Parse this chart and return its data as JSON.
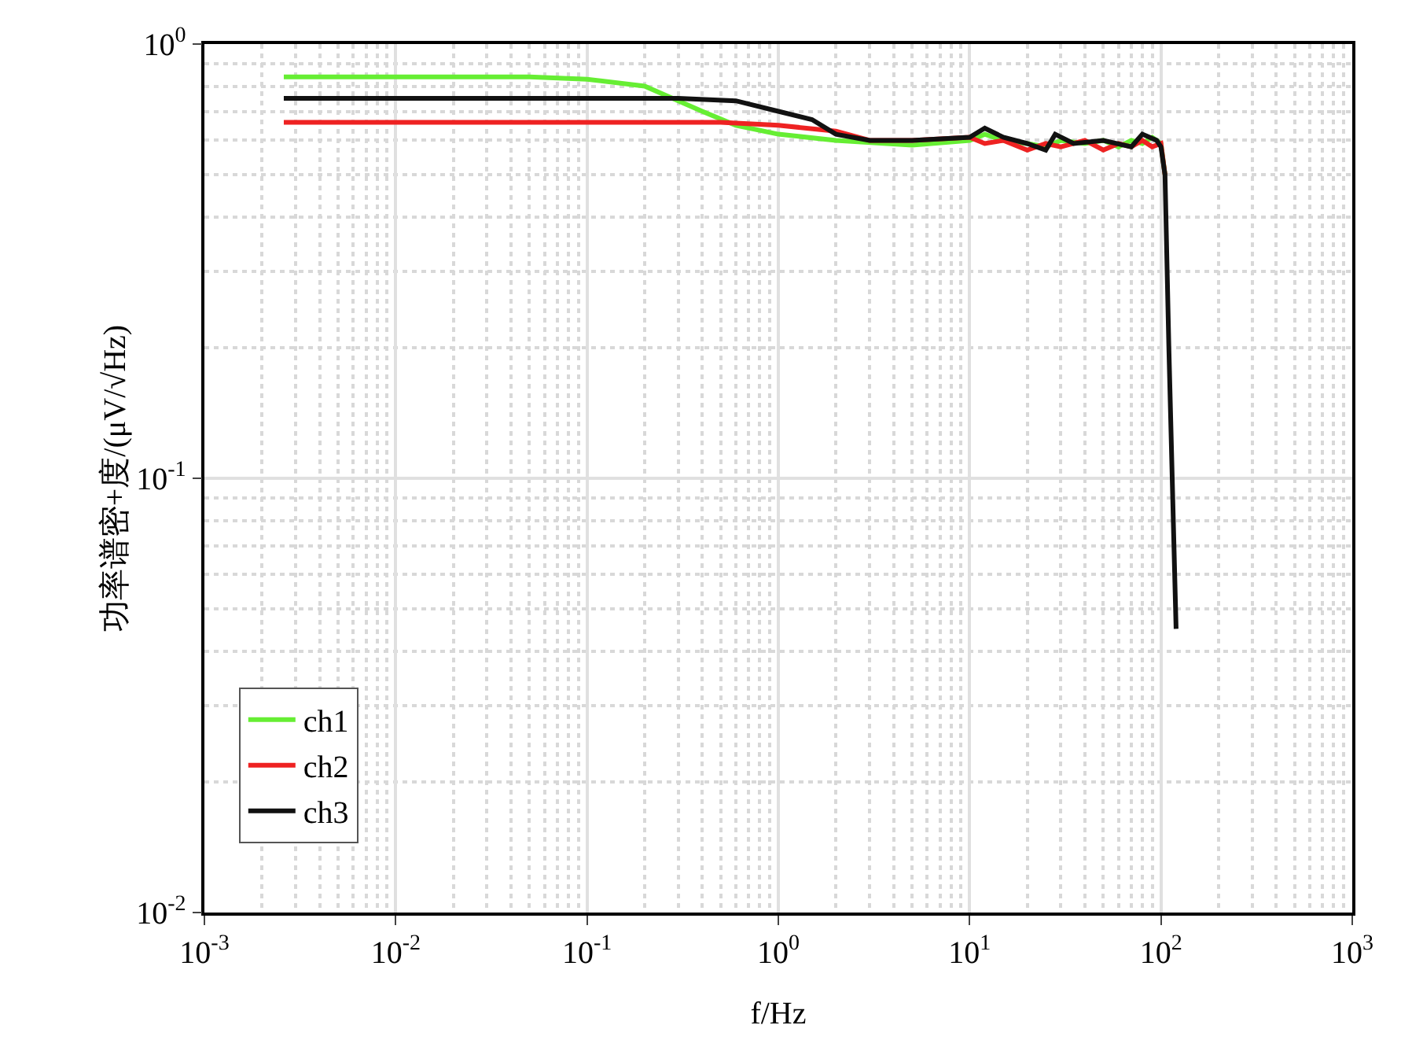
{
  "chart_data": {
    "type": "line",
    "xlabel": "f/Hz",
    "ylabel": "功率谱密+度/(μV/√Hz)",
    "log": "xy",
    "grid": true,
    "legend": "bottom left",
    "line_style": "solid",
    "marker": "none",
    "xlim": [
      0.001,
      1000
    ],
    "ylim": [
      0.01,
      1
    ],
    "xticks": [
      {
        "value": 0.001,
        "label": "10$^{-3}$"
      },
      {
        "value": 0.01,
        "label": "10$^{-2}$"
      },
      {
        "value": 0.1,
        "label": "10$^{-1}$"
      },
      {
        "value": 1,
        "label": "10$^{0}$"
      },
      {
        "value": 10,
        "label": "10$^{1}$"
      },
      {
        "value": 100,
        "label": "10$^{2}$"
      },
      {
        "value": 1000,
        "label": "10$^{3}$"
      }
    ],
    "yticks": [
      {
        "value": 0.01,
        "label": "10$^{-2}$"
      },
      {
        "value": 0.1,
        "label": "10$^{-1}$"
      },
      {
        "value": 1,
        "label": "10$^{0}$"
      }
    ],
    "series": [
      {
        "name": "ch1",
        "color": "#66ee33",
        "x": [
          0.0026,
          0.01,
          0.05,
          0.1,
          0.2,
          0.4,
          0.6,
          1,
          2,
          5,
          10,
          12,
          15,
          20,
          25,
          30,
          40,
          50,
          60,
          70,
          80,
          90,
          100,
          105
        ],
        "values": [
          0.84,
          0.84,
          0.84,
          0.83,
          0.8,
          0.7,
          0.65,
          0.62,
          0.6,
          0.585,
          0.6,
          0.62,
          0.6,
          0.59,
          0.58,
          0.6,
          0.59,
          0.6,
          0.58,
          0.6,
          0.59,
          0.61,
          0.59,
          0.5
        ]
      },
      {
        "name": "ch2",
        "color": "#ee2222",
        "x": [
          0.0026,
          0.01,
          0.1,
          0.5,
          1,
          2,
          3,
          5,
          10,
          12,
          15,
          20,
          25,
          30,
          40,
          50,
          60,
          70,
          80,
          90,
          100,
          105
        ],
        "values": [
          0.66,
          0.66,
          0.66,
          0.66,
          0.65,
          0.63,
          0.6,
          0.6,
          0.61,
          0.59,
          0.6,
          0.57,
          0.59,
          0.58,
          0.6,
          0.57,
          0.59,
          0.58,
          0.6,
          0.58,
          0.59,
          0.5
        ]
      },
      {
        "name": "ch3",
        "color": "#111111",
        "x": [
          0.0026,
          0.01,
          0.1,
          0.3,
          0.6,
          1,
          1.5,
          2,
          3,
          5,
          10,
          12,
          15,
          20,
          25,
          28,
          35,
          50,
          70,
          80,
          95,
          100,
          105,
          110,
          120
        ],
        "values": [
          0.75,
          0.75,
          0.75,
          0.75,
          0.74,
          0.7,
          0.67,
          0.62,
          0.6,
          0.6,
          0.61,
          0.64,
          0.61,
          0.59,
          0.57,
          0.62,
          0.59,
          0.6,
          0.58,
          0.62,
          0.6,
          0.58,
          0.5,
          0.2,
          0.045
        ]
      }
    ]
  }
}
